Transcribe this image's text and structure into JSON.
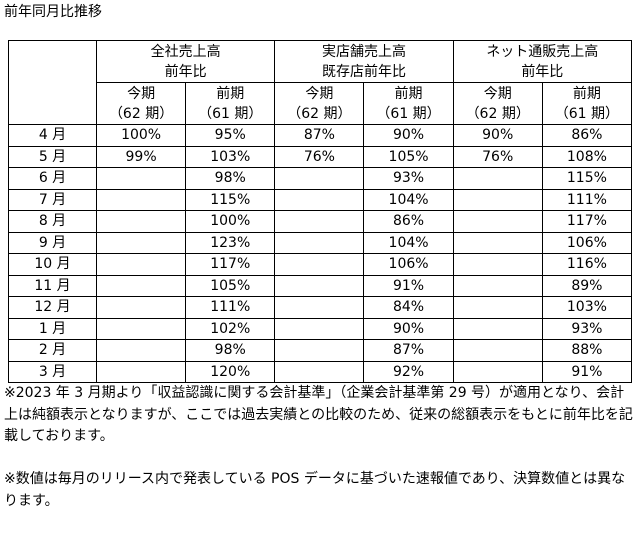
{
  "title": "前年同月比推移",
  "table": {
    "groups": [
      [
        "全社売上高",
        "前年比"
      ],
      [
        "実店舗売上高",
        "既存店前年比"
      ],
      [
        "ネット通販売上高",
        "前年比"
      ]
    ],
    "subheaders": [
      [
        "今期",
        "（62 期）"
      ],
      [
        "前期",
        "（61 期）"
      ],
      [
        "今期",
        "（62 期）"
      ],
      [
        "前期",
        "（61 期）"
      ],
      [
        "今期",
        "（62 期）"
      ],
      [
        "前期",
        "（61 期）"
      ]
    ],
    "rows": [
      {
        "month": "4 月",
        "cells": [
          "100%",
          "95%",
          "87%",
          "90%",
          "90%",
          "86%"
        ]
      },
      {
        "month": "5 月",
        "cells": [
          "99%",
          "103%",
          "76%",
          "105%",
          "76%",
          "108%"
        ]
      },
      {
        "month": "6 月",
        "cells": [
          null,
          "98%",
          null,
          "93%",
          null,
          "115%"
        ]
      },
      {
        "month": "7 月",
        "cells": [
          null,
          "115%",
          null,
          "104%",
          null,
          "111%"
        ]
      },
      {
        "month": "8 月",
        "cells": [
          null,
          "100%",
          null,
          "86%",
          null,
          "117%"
        ]
      },
      {
        "month": "9 月",
        "cells": [
          null,
          "123%",
          null,
          "104%",
          null,
          "106%"
        ]
      },
      {
        "month": "10 月",
        "cells": [
          null,
          "117%",
          null,
          "106%",
          null,
          "116%"
        ]
      },
      {
        "month": "11 月",
        "cells": [
          null,
          "105%",
          null,
          "91%",
          null,
          "89%"
        ]
      },
      {
        "month": "12 月",
        "cells": [
          null,
          "111%",
          null,
          "84%",
          null,
          "103%"
        ]
      },
      {
        "month": "1 月",
        "cells": [
          null,
          "102%",
          null,
          "90%",
          null,
          "93%"
        ]
      },
      {
        "month": "2 月",
        "cells": [
          null,
          "98%",
          null,
          "87%",
          null,
          "88%"
        ]
      },
      {
        "month": "3 月",
        "cells": [
          null,
          "120%",
          null,
          "92%",
          null,
          "91%"
        ]
      }
    ]
  },
  "notes": [
    "※2023 年 3 月期より「収益認識に関する会計基準」（企業会計基準第 29 号）が適用となり、会計上は純額表示となりますが、ここでは過去実績との比較のため、従来の総額表示をもとに前年比を記載しております。",
    "※数値は毎月のリリース内で発表している POS データに基づいた速報値であり、決算数値とは異なります。"
  ]
}
